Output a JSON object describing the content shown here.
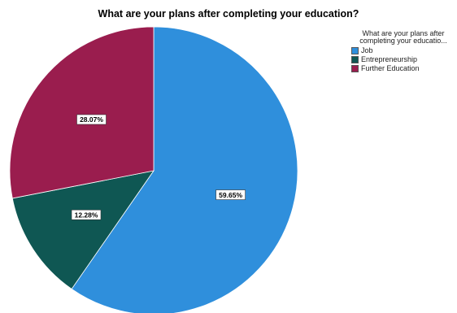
{
  "chart_data": {
    "type": "pie",
    "title": "What are your plans after completing your education?",
    "legend": {
      "title": "What are your plans after completing your educatio...",
      "placement": "top-right"
    },
    "categories": [
      "Job",
      "Entrepreneurship",
      "Further Education"
    ],
    "values": [
      59.65,
      12.28,
      28.07
    ],
    "labels": [
      "59.65%",
      "12.28%",
      "28.07%"
    ],
    "colors": [
      "#2f8fdc",
      "#0f5753",
      "#9a1d4e"
    ]
  }
}
